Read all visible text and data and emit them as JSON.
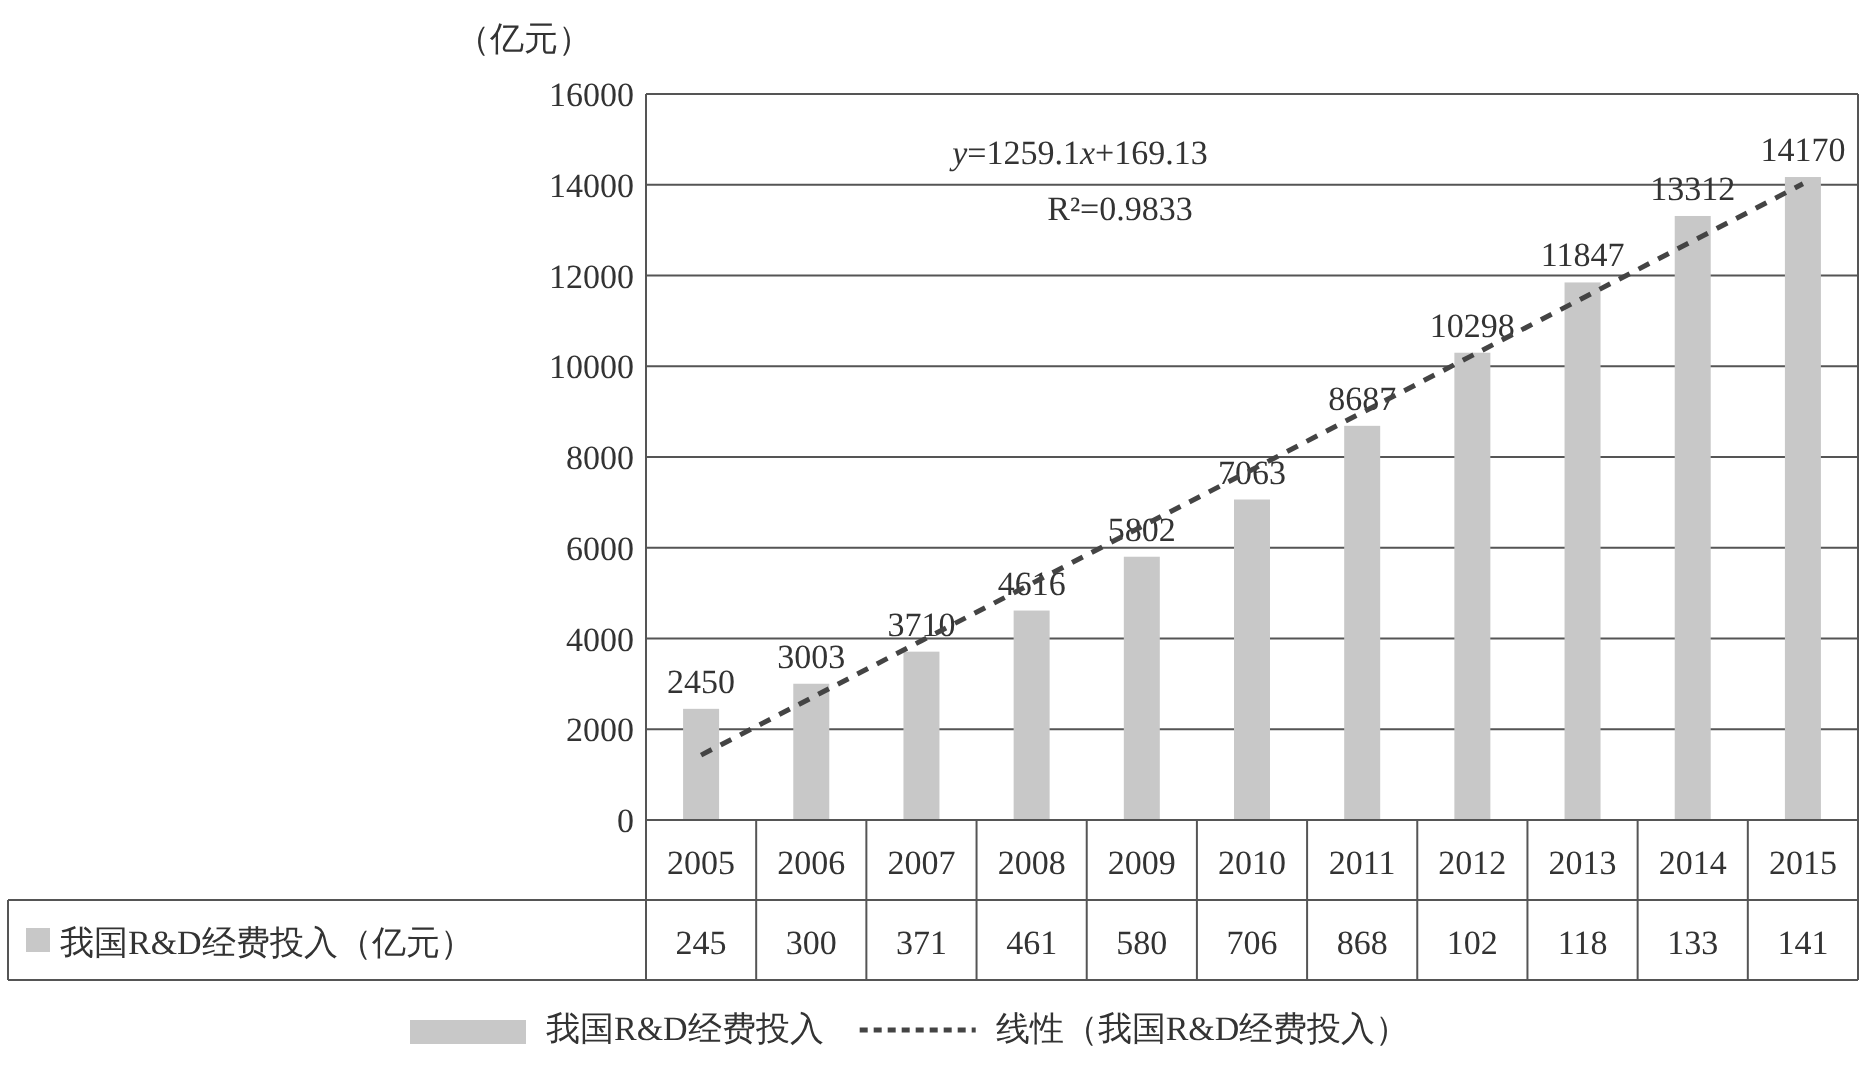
{
  "chart_data": {
    "type": "bar",
    "categories": [
      "2005",
      "2006",
      "2007",
      "2008",
      "2009",
      "2010",
      "2011",
      "2012",
      "2013",
      "2014",
      "2015"
    ],
    "ylabel": "（亿元）",
    "ylim": [
      0,
      16000
    ],
    "yticks": [
      0,
      2000,
      4000,
      6000,
      8000,
      10000,
      12000,
      14000,
      16000
    ],
    "grid": "y",
    "legend": "bottom",
    "series": [
      {
        "name": "我国R&D经费投入",
        "color": "#c8c8c8",
        "values": [
          2450,
          3003,
          3710,
          4616,
          5802,
          7063,
          8687,
          10298,
          11847,
          13312,
          14170
        ],
        "value_labels": [
          "2450",
          "3003",
          "3710",
          "4616",
          "5802",
          "7063",
          "8687",
          "10298",
          "11847",
          "13312",
          "14170"
        ]
      },
      {
        "name": "线性（我国R&D经费投入）",
        "type": "line",
        "color": "#444444",
        "line_style": "dashed",
        "values": [
          1430,
          2690,
          3950,
          5210,
          6470,
          7720,
          8980,
          10240,
          11500,
          12760,
          14020
        ]
      }
    ],
    "annotations": [
      "y=1259.1x+169.13",
      "R²=0.9833",
      "我国R&D经费投入（亿元）",
      "245",
      "300",
      "371",
      "461",
      "580",
      "706",
      "868",
      "102",
      "118",
      "133",
      "141"
    ]
  }
}
